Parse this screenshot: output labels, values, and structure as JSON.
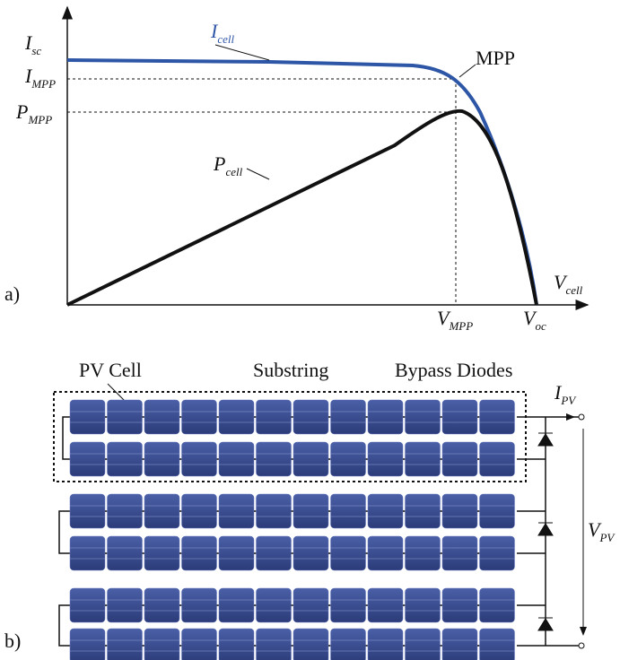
{
  "panel_a": {
    "tag": "a)",
    "mpp": "MPP",
    "labels": {
      "isc": {
        "main": "I",
        "sub": "sc"
      },
      "impp": {
        "main": "I",
        "sub": "MPP"
      },
      "pmpp": {
        "main": "P",
        "sub": "MPP"
      },
      "icell": {
        "main": "I",
        "sub": "cell"
      },
      "pcell": {
        "main": "P",
        "sub": "cell"
      },
      "vcell": {
        "main": "V",
        "sub": "cell"
      },
      "vmpp": {
        "main": "V",
        "sub": "MPP"
      },
      "voc": {
        "main": "V",
        "sub": "oc"
      }
    }
  },
  "panel_b": {
    "tag": "b)",
    "pv_cell": "PV Cell",
    "substring": "Substring",
    "bypass_diodes": "Bypass Diodes",
    "current": {
      "main": "I",
      "sub": "PV"
    },
    "voltage": {
      "main": "V",
      "sub": "PV"
    }
  }
}
